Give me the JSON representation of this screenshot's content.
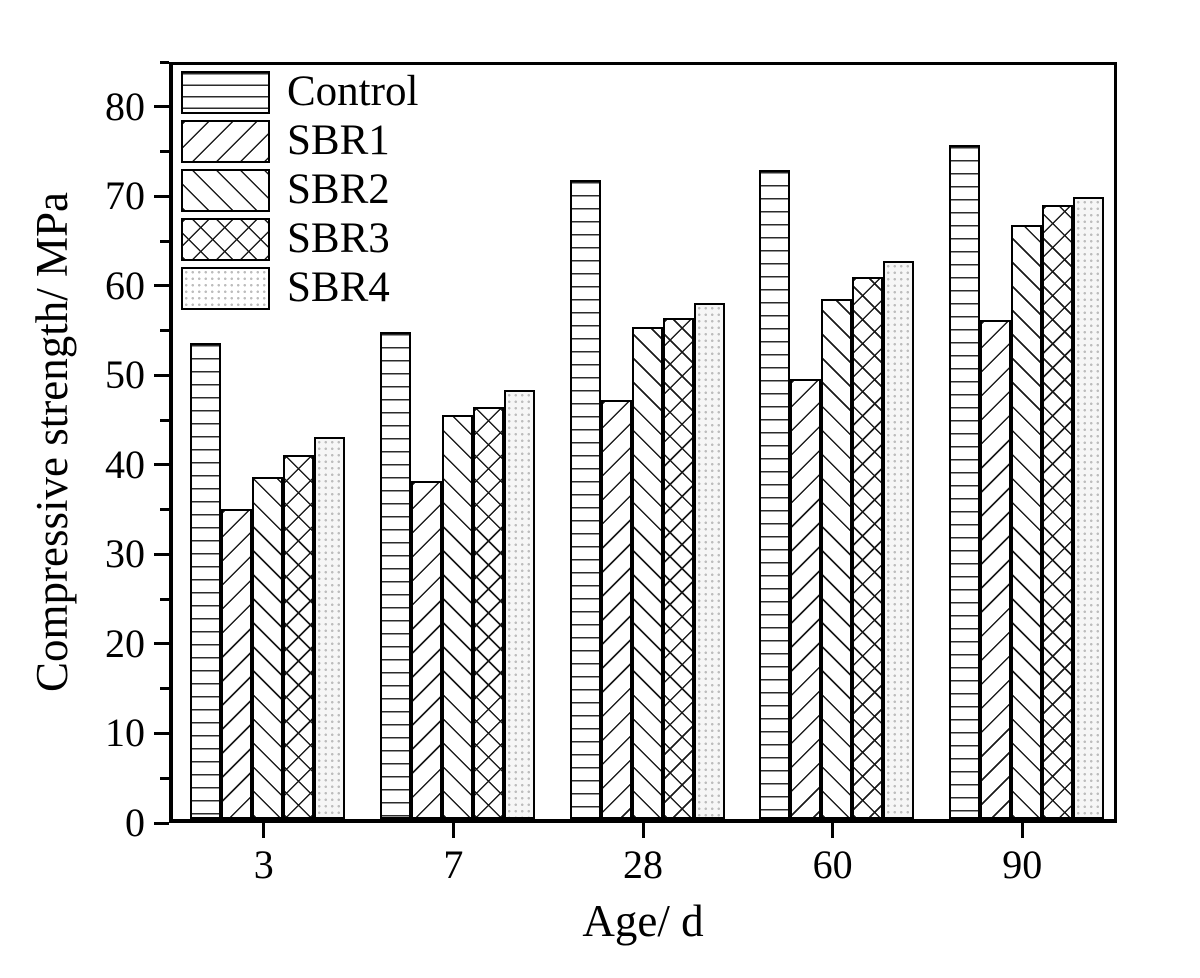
{
  "chart_data": {
    "type": "bar",
    "title": "",
    "xlabel": "Age/ d",
    "ylabel": "Compressive strength/ MPa",
    "ylim": [
      0,
      85
    ],
    "yticks_major": [
      0,
      10,
      20,
      30,
      40,
      50,
      60,
      70,
      80
    ],
    "yticks_minor": [
      5,
      15,
      25,
      35,
      45,
      55,
      65,
      75,
      85
    ],
    "grid": false,
    "legend_position": "top-left-inside",
    "categories": [
      "3",
      "7",
      "28",
      "60",
      "90"
    ],
    "series": [
      {
        "name": "Control",
        "pattern": "horizontal-lines",
        "values": [
          53.2,
          54.4,
          71.4,
          72.5,
          75.3
        ]
      },
      {
        "name": "SBR1",
        "pattern": "forward-diagonal",
        "values": [
          34.6,
          37.7,
          46.8,
          49.1,
          55.7
        ]
      },
      {
        "name": "SBR2",
        "pattern": "backward-diagonal",
        "values": [
          38.2,
          45.1,
          55.0,
          58.1,
          66.3
        ]
      },
      {
        "name": "SBR3",
        "pattern": "crosshatch",
        "values": [
          40.7,
          46.0,
          56.0,
          60.5,
          68.6
        ]
      },
      {
        "name": "SBR4",
        "pattern": "dots",
        "values": [
          42.7,
          47.9,
          57.6,
          62.3,
          69.5
        ]
      }
    ],
    "colors": {
      "stroke": "#000000",
      "bar_fill": "#ffffff",
      "dots_fill": "#f6f6f6",
      "text": "#000000"
    }
  }
}
